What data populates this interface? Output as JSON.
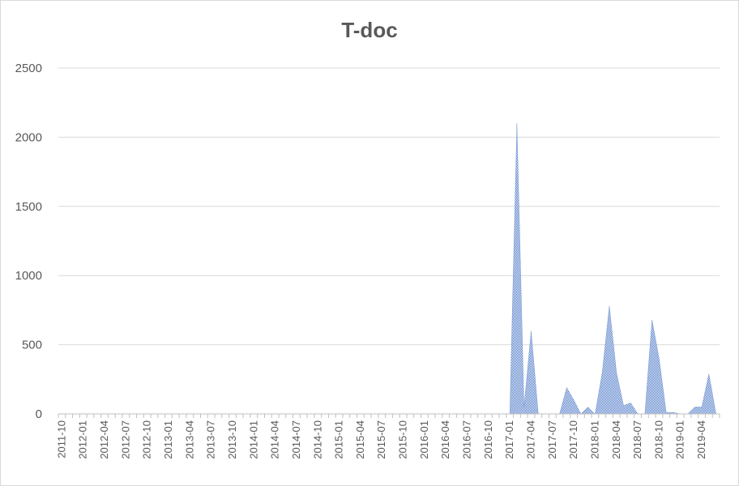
{
  "chart_data": {
    "type": "area",
    "title": "T-doc",
    "xlabel": "",
    "ylabel": "",
    "ylim": [
      0,
      2500
    ],
    "yticks": [
      0,
      500,
      1000,
      1500,
      2000,
      2500
    ],
    "grid": "horizontal",
    "legend": "none",
    "fill_color": "#4472c4",
    "x": [
      "2011-10",
      "2011-11",
      "2011-12",
      "2012-01",
      "2012-02",
      "2012-03",
      "2012-04",
      "2012-05",
      "2012-06",
      "2012-07",
      "2012-08",
      "2012-09",
      "2012-10",
      "2012-11",
      "2012-12",
      "2013-01",
      "2013-02",
      "2013-03",
      "2013-04",
      "2013-05",
      "2013-06",
      "2013-07",
      "2013-08",
      "2013-09",
      "2013-10",
      "2013-11",
      "2013-12",
      "2014-01",
      "2014-02",
      "2014-03",
      "2014-04",
      "2014-05",
      "2014-06",
      "2014-07",
      "2014-08",
      "2014-09",
      "2014-10",
      "2014-11",
      "2014-12",
      "2015-01",
      "2015-02",
      "2015-03",
      "2015-04",
      "2015-05",
      "2015-06",
      "2015-07",
      "2015-08",
      "2015-09",
      "2015-10",
      "2015-11",
      "2015-12",
      "2016-01",
      "2016-02",
      "2016-03",
      "2016-04",
      "2016-05",
      "2016-06",
      "2016-07",
      "2016-08",
      "2016-09",
      "2016-10",
      "2016-11",
      "2016-12",
      "2017-01",
      "2017-02",
      "2017-03",
      "2017-04",
      "2017-05",
      "2017-06",
      "2017-07",
      "2017-08",
      "2017-09",
      "2017-10",
      "2017-11",
      "2017-12",
      "2018-01",
      "2018-02",
      "2018-03",
      "2018-04",
      "2018-05",
      "2018-06",
      "2018-07",
      "2018-08",
      "2018-09",
      "2018-10",
      "2018-11",
      "2018-12",
      "2019-01",
      "2019-02",
      "2019-03",
      "2019-04",
      "2019-05",
      "2019-06"
    ],
    "values": [
      0,
      0,
      0,
      0,
      0,
      0,
      0,
      0,
      0,
      0,
      0,
      0,
      0,
      0,
      0,
      0,
      0,
      0,
      0,
      0,
      0,
      0,
      0,
      0,
      0,
      0,
      0,
      0,
      0,
      0,
      0,
      0,
      0,
      0,
      0,
      0,
      0,
      0,
      0,
      0,
      0,
      0,
      0,
      0,
      0,
      0,
      0,
      0,
      0,
      0,
      0,
      0,
      0,
      0,
      0,
      0,
      0,
      0,
      0,
      0,
      0,
      0,
      0,
      0,
      2100,
      50,
      600,
      0,
      0,
      0,
      0,
      190,
      100,
      0,
      50,
      0,
      300,
      780,
      300,
      60,
      80,
      0,
      0,
      680,
      400,
      10,
      10,
      0,
      0,
      50,
      50,
      290,
      0
    ],
    "xtick_labels": [
      "2011-10",
      "2012-01",
      "2012-04",
      "2012-07",
      "2012-10",
      "2013-01",
      "2013-04",
      "2013-07",
      "2013-10",
      "2014-01",
      "2014-04",
      "2014-07",
      "2014-10",
      "2015-01",
      "2015-04",
      "2015-07",
      "2015-10",
      "2016-01",
      "2016-04",
      "2016-07",
      "2016-10",
      "2017-01",
      "2017-04",
      "2017-07",
      "2017-10",
      "2018-01",
      "2018-04",
      "2018-07",
      "2018-10",
      "2019-01",
      "2019-04"
    ]
  }
}
